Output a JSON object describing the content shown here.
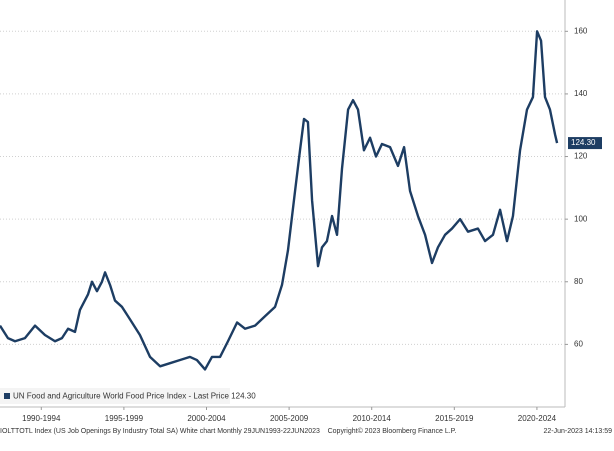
{
  "chart_data": {
    "type": "line",
    "legend": "UN Food and Agriculture World Food Price Index - Last Price 124.30",
    "last_price_tag": "124.30",
    "footer_left": "IOLTTOTL Index (US Job Openings By Industry Total SA) White chart  Monthly 29JUN1993-22JUN2023",
    "footer_center": "Copyright© 2023 Bloomberg Finance L.P.",
    "footer_right": "22-Jun-2023 14:13:59",
    "x": [
      1990.0,
      1990.48,
      1990.91,
      1991.51,
      1992.12,
      1992.72,
      1993.33,
      1993.75,
      1994.12,
      1994.54,
      1994.84,
      1995.33,
      1995.57,
      1995.87,
      1996.17,
      1996.36,
      1996.66,
      1996.96,
      1997.38,
      1997.87,
      1998.47,
      1999.08,
      1999.69,
      2000.29,
      2000.9,
      2001.5,
      2001.92,
      2002.41,
      2002.83,
      2003.32,
      2003.8,
      2004.35,
      2004.83,
      2005.44,
      2006.04,
      2006.65,
      2007.07,
      2007.43,
      2007.86,
      2008.16,
      2008.4,
      2008.64,
      2008.89,
      2009.25,
      2009.49,
      2009.79,
      2010.1,
      2010.4,
      2010.7,
      2011.07,
      2011.37,
      2011.67,
      2012.03,
      2012.4,
      2012.76,
      2013.12,
      2013.61,
      2014.09,
      2014.46,
      2014.82,
      2015.3,
      2015.73,
      2016.15,
      2016.51,
      2016.94,
      2017.36,
      2017.85,
      2018.33,
      2018.93,
      2019.36,
      2019.84,
      2020.27,
      2020.69,
      2021.05,
      2021.48,
      2021.9,
      2022.26,
      2022.51,
      2022.75,
      2022.99,
      2023.29,
      2023.6,
      2023.72
    ],
    "series": [
      {
        "name": "UN Food and Agriculture World Food Price Index",
        "color": "#1d3d63",
        "values": [
          66,
          62,
          61,
          62,
          66,
          63,
          61,
          62,
          65,
          64,
          71,
          76,
          80,
          77,
          80,
          83,
          79,
          74,
          72,
          68,
          63,
          56,
          53,
          54,
          55,
          56,
          55,
          52,
          56,
          56,
          61,
          67,
          65,
          66,
          69,
          72,
          79,
          90,
          109,
          122,
          132,
          131,
          106,
          85,
          91,
          93,
          101,
          95,
          116,
          135,
          138,
          135,
          122,
          126,
          120,
          124,
          123,
          117,
          123,
          109,
          101,
          95,
          86,
          91,
          95,
          97,
          100,
          96,
          97,
          93,
          95,
          103,
          93,
          101,
          122,
          135,
          139,
          160,
          157,
          139,
          135,
          127,
          124.3
        ]
      }
    ],
    "xlim": [
      1990,
      2024.2
    ],
    "xticks": [
      {
        "value": 1992.5,
        "label": "1990-1994"
      },
      {
        "value": 1997.5,
        "label": "1995-1999"
      },
      {
        "value": 2002.5,
        "label": "2000-2004"
      },
      {
        "value": 2007.5,
        "label": "2005-2009"
      },
      {
        "value": 2012.5,
        "label": "2010-2014"
      },
      {
        "value": 2017.5,
        "label": "2015-2019"
      },
      {
        "value": 2022.5,
        "label": "2020-2024"
      }
    ],
    "ylim": [
      40,
      170
    ],
    "yticks": [
      60,
      80,
      100,
      120,
      140,
      160
    ],
    "grid": true
  }
}
